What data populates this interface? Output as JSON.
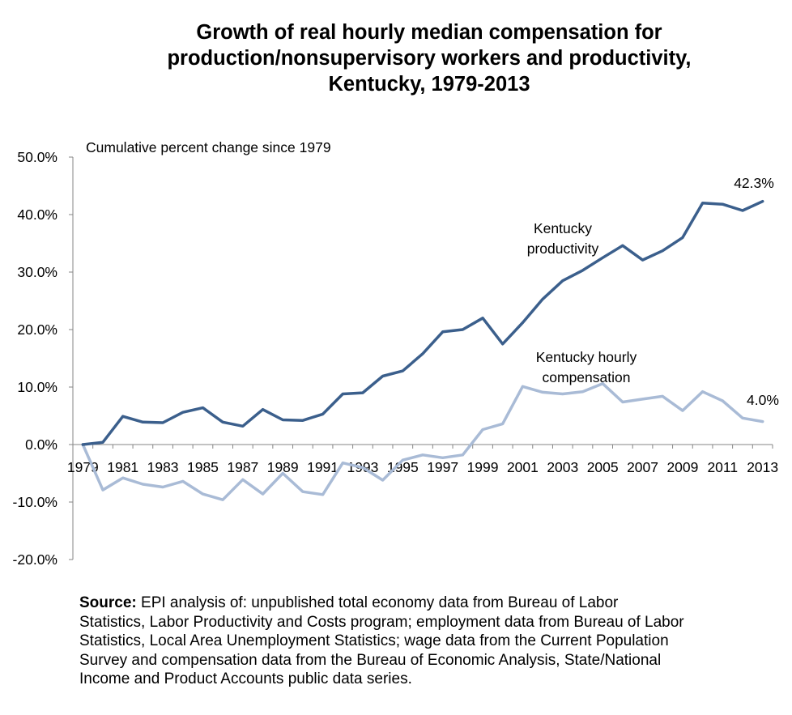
{
  "title_lines": [
    "Growth of real hourly median compensation for",
    "production/nonsupervisory workers and productivity,",
    "Kentucky, 1979-2013"
  ],
  "source": {
    "label": "Source:",
    "text": " EPI analysis of: unpublished total economy data from Bureau of Labor\nStatistics, Labor Productivity and Costs program; employment data from Bureau of Labor\nStatistics, Local Area Unemployment Statistics; wage data from the Current Population\nSurvey and compensation data from the Bureau of Economic Analysis, State/National\nIncome and Product Accounts public data series."
  },
  "colors": {
    "productivity": "#3B5F8C",
    "compensation": "#A9BBD6",
    "axis": "#868686"
  },
  "chart_data": {
    "type": "line",
    "title": "Growth of real hourly median compensation for production/nonsupervisory workers and productivity, Kentucky, 1979-2013",
    "ylabel": "Cumulative percent change since 1979",
    "xlabel": "",
    "ylim": [
      -20,
      50
    ],
    "yticks": [
      -20,
      -10,
      0,
      10,
      20,
      30,
      40,
      50
    ],
    "ytick_labels": [
      "-20.0%",
      "-10.0%",
      "0.0%",
      "10.0%",
      "20.0%",
      "30.0%",
      "40.0%",
      "50.0%"
    ],
    "x": [
      1979,
      1980,
      1981,
      1982,
      1983,
      1984,
      1985,
      1986,
      1987,
      1988,
      1989,
      1990,
      1991,
      1992,
      1993,
      1994,
      1995,
      1996,
      1997,
      1998,
      1999,
      2000,
      2001,
      2002,
      2003,
      2004,
      2005,
      2006,
      2007,
      2008,
      2009,
      2010,
      2011,
      2012,
      2013
    ],
    "xtick_labels": [
      "1979",
      "1981",
      "1983",
      "1985",
      "1987",
      "1989",
      "1991",
      "1993",
      "1995",
      "1997",
      "1999",
      "2001",
      "2003",
      "2005",
      "2007",
      "2009",
      "2011",
      "2013"
    ],
    "grid": false,
    "series": [
      {
        "name": "Kentucky productivity",
        "color": "#3B5F8C",
        "values": [
          0.0,
          0.4,
          4.9,
          3.9,
          3.8,
          5.6,
          6.4,
          3.9,
          3.2,
          6.1,
          4.3,
          4.2,
          5.3,
          8.8,
          9.0,
          11.9,
          12.8,
          15.8,
          19.6,
          20.0,
          22.0,
          17.5,
          21.2,
          25.3,
          28.5,
          30.3,
          32.5,
          34.6,
          32.1,
          33.7,
          36.0,
          42.0,
          41.8,
          40.7,
          42.3
        ],
        "end_label": "42.3%"
      },
      {
        "name": "Kentucky hourly compensation",
        "color": "#A9BBD6",
        "values": [
          0.0,
          -7.9,
          -5.8,
          -6.9,
          -7.4,
          -6.4,
          -8.6,
          -9.6,
          -6.1,
          -8.6,
          -5.0,
          -8.2,
          -8.7,
          -3.2,
          -4.0,
          -6.2,
          -2.7,
          -1.8,
          -2.3,
          -1.8,
          2.6,
          3.6,
          10.1,
          9.1,
          8.8,
          9.2,
          10.6,
          7.4,
          7.9,
          8.4,
          5.9,
          9.2,
          7.6,
          4.6,
          4.0
        ],
        "end_label": "4.0%"
      }
    ]
  }
}
